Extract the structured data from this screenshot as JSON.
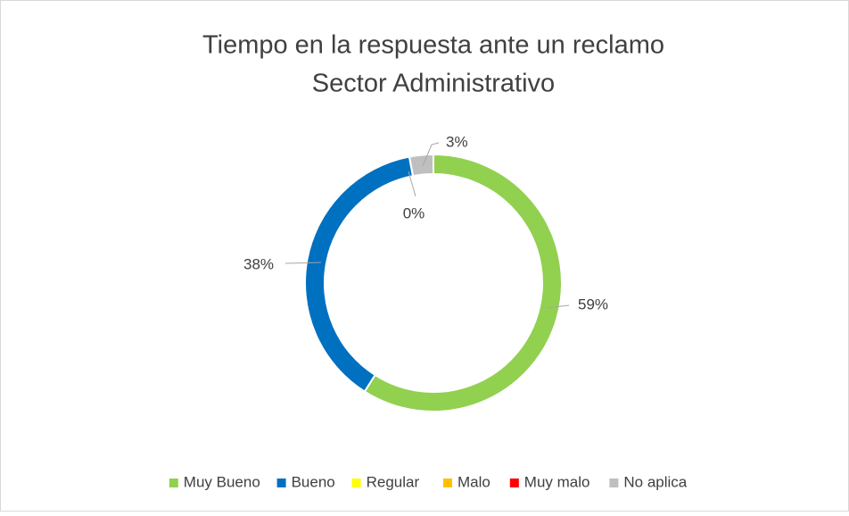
{
  "chart_data": {
    "type": "doughnut",
    "title": "Tiempo en la respuesta ante un reclamo",
    "subtitle": "Sector Administrativo",
    "categories": [
      "Muy Bueno",
      "Bueno",
      "Regular",
      "Malo",
      "Muy malo",
      "No aplica"
    ],
    "values": [
      59,
      38,
      0,
      0,
      0,
      3
    ],
    "value_labels": [
      "59%",
      "38%",
      "0%",
      null,
      null,
      "3%"
    ],
    "colors": [
      "#92d050",
      "#0070c0",
      "#ffff00",
      "#ffc000",
      "#ff0000",
      "#bfbfbf"
    ],
    "legend": "bottom"
  }
}
